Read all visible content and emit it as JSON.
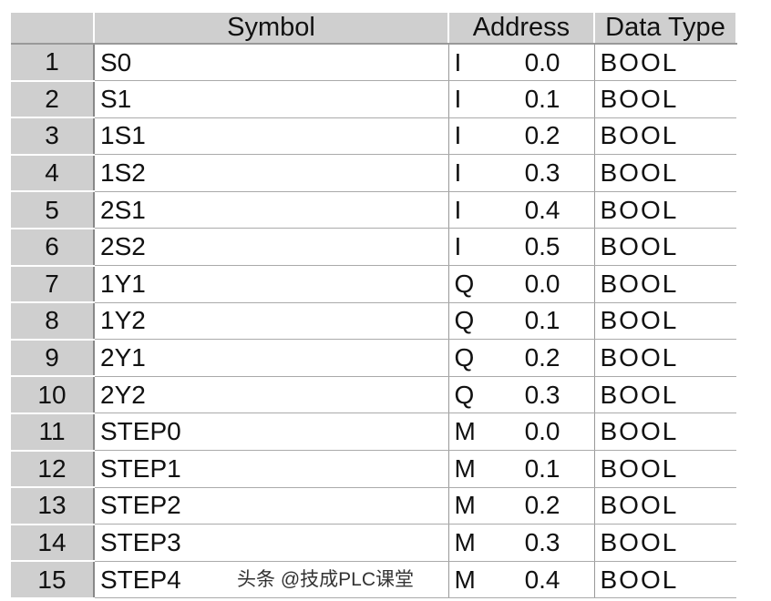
{
  "table": {
    "headers": [
      "",
      "Symbol",
      "Address",
      "Data Type"
    ],
    "rows": [
      {
        "num": "1",
        "symbol": "S0",
        "area": "I",
        "offset": "0.0",
        "type": "BOOL"
      },
      {
        "num": "2",
        "symbol": "S1",
        "area": "I",
        "offset": "0.1",
        "type": "BOOL"
      },
      {
        "num": "3",
        "symbol": "1S1",
        "area": "I",
        "offset": "0.2",
        "type": "BOOL"
      },
      {
        "num": "4",
        "symbol": "1S2",
        "area": "I",
        "offset": "0.3",
        "type": "BOOL"
      },
      {
        "num": "5",
        "symbol": "2S1",
        "area": "I",
        "offset": "0.4",
        "type": "BOOL"
      },
      {
        "num": "6",
        "symbol": "2S2",
        "area": "I",
        "offset": "0.5",
        "type": "BOOL"
      },
      {
        "num": "7",
        "symbol": "1Y1",
        "area": "Q",
        "offset": "0.0",
        "type": "BOOL"
      },
      {
        "num": "8",
        "symbol": "1Y2",
        "area": "Q",
        "offset": "0.1",
        "type": "BOOL"
      },
      {
        "num": "9",
        "symbol": "2Y1",
        "area": "Q",
        "offset": "0.2",
        "type": "BOOL"
      },
      {
        "num": "10",
        "symbol": "2Y2",
        "area": "Q",
        "offset": "0.3",
        "type": "BOOL"
      },
      {
        "num": "11",
        "symbol": "STEP0",
        "area": "M",
        "offset": "0.0",
        "type": "BOOL"
      },
      {
        "num": "12",
        "symbol": "STEP1",
        "area": "M",
        "offset": "0.1",
        "type": "BOOL"
      },
      {
        "num": "13",
        "symbol": "STEP2",
        "area": "M",
        "offset": "0.2",
        "type": "BOOL"
      },
      {
        "num": "14",
        "symbol": "STEP3",
        "area": "M",
        "offset": "0.3",
        "type": "BOOL"
      },
      {
        "num": "15",
        "symbol": "STEP4",
        "area": "M",
        "offset": "0.4",
        "type": "BOOL"
      }
    ]
  },
  "watermark": "头条 @技成PLC课堂"
}
